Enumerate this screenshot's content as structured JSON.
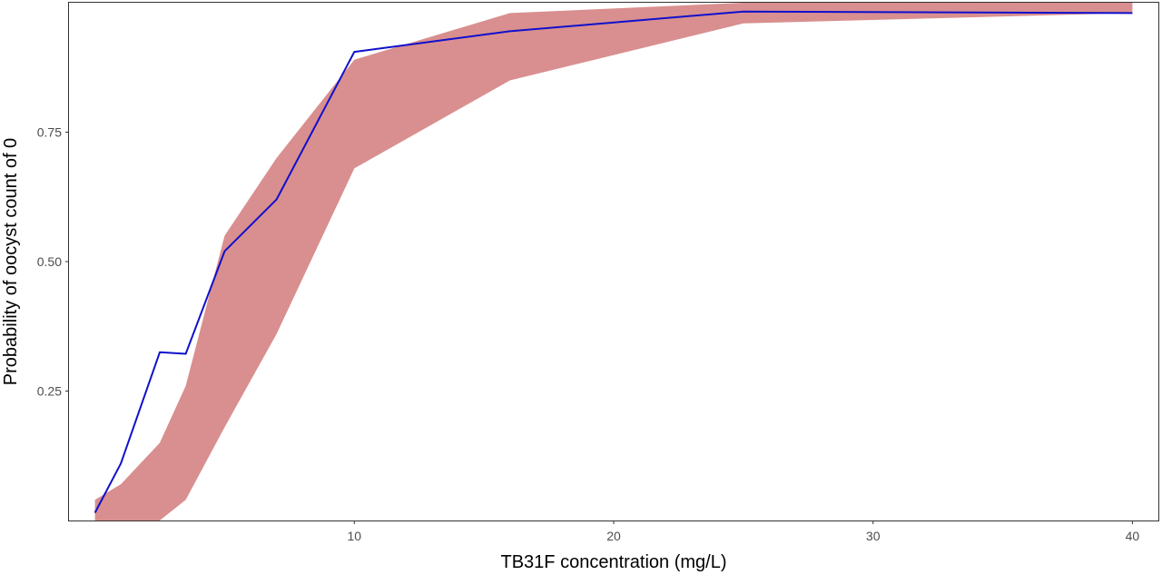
{
  "chart_data": {
    "type": "line",
    "title": "",
    "xlabel": "TB31F concentration (mg/L)",
    "ylabel": "Probability of oocyst count of 0",
    "xlim": [
      -1.0,
      41.0
    ],
    "ylim": [
      0.0,
      1.0
    ],
    "x_ticks": [
      10,
      20,
      30,
      40
    ],
    "x_tick_labels": [
      "10",
      "20",
      "30",
      "40"
    ],
    "y_ticks": [
      0.25,
      0.5,
      0.75
    ],
    "y_tick_labels": [
      "0.25",
      "0.50",
      "0.75"
    ],
    "grid": false,
    "legend": "none",
    "band": {
      "color": "#d98f8f",
      "x": [
        0,
        1,
        2.5,
        3.5,
        5,
        7,
        10,
        16,
        25,
        40
      ],
      "lower": [
        0.0,
        0.0,
        0.0,
        0.04,
        0.18,
        0.36,
        0.68,
        0.85,
        0.96,
        0.98
      ],
      "upper": [
        0.04,
        0.07,
        0.15,
        0.26,
        0.55,
        0.7,
        0.89,
        0.98,
        1.0,
        1.0
      ]
    },
    "series": [
      {
        "color": "#1010cc",
        "x": [
          0,
          1,
          2.5,
          3.5,
          5,
          7,
          10,
          16,
          25,
          40
        ],
        "values": [
          0.015,
          0.11,
          0.325,
          0.322,
          0.52,
          0.62,
          0.905,
          0.945,
          0.983,
          0.98
        ]
      }
    ]
  }
}
